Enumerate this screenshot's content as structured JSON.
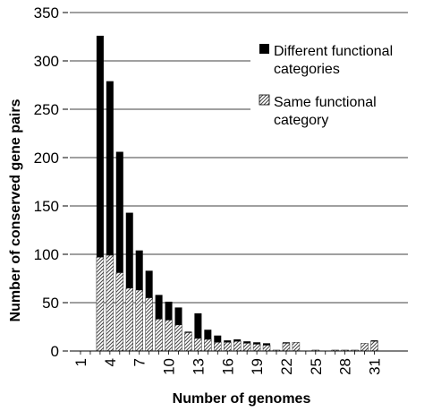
{
  "chart_data": {
    "type": "bar",
    "stacked": true,
    "xlabel": "Number of genomes",
    "ylabel": "Number of conserved gene pairs",
    "ylim": [
      0,
      350
    ],
    "yticks": [
      0,
      50,
      100,
      150,
      200,
      250,
      300,
      350
    ],
    "xtick_labels": [
      "1",
      "4",
      "7",
      "10",
      "13",
      "16",
      "19",
      "22",
      "25",
      "28",
      "31"
    ],
    "categories": [
      "1",
      "2",
      "3",
      "4",
      "5",
      "6",
      "7",
      "8",
      "9",
      "10",
      "11",
      "12",
      "13",
      "14",
      "15",
      "16",
      "17",
      "18",
      "19",
      "20",
      "21",
      "22",
      "23",
      "24",
      "25",
      "26",
      "27",
      "28",
      "29",
      "30",
      "31"
    ],
    "grid": "horizontal",
    "legend_position": "top-right",
    "series": [
      {
        "name": "Same functional category",
        "pattern": "hatched",
        "values": [
          0,
          0,
          97,
          99,
          81,
          65,
          63,
          55,
          33,
          32,
          27,
          19,
          13,
          12,
          9,
          9,
          10,
          8,
          7,
          6,
          1,
          8,
          9,
          0,
          1,
          0,
          1,
          1,
          1,
          8,
          10
        ]
      },
      {
        "name": "Different functional categories",
        "color": "#000000",
        "values": [
          0,
          0,
          229,
          180,
          125,
          78,
          41,
          28,
          25,
          19,
          18,
          1,
          26,
          10,
          7,
          2,
          2,
          2,
          2,
          2,
          0,
          1,
          0,
          0,
          0,
          0,
          0,
          0,
          0,
          0,
          1
        ]
      }
    ]
  }
}
